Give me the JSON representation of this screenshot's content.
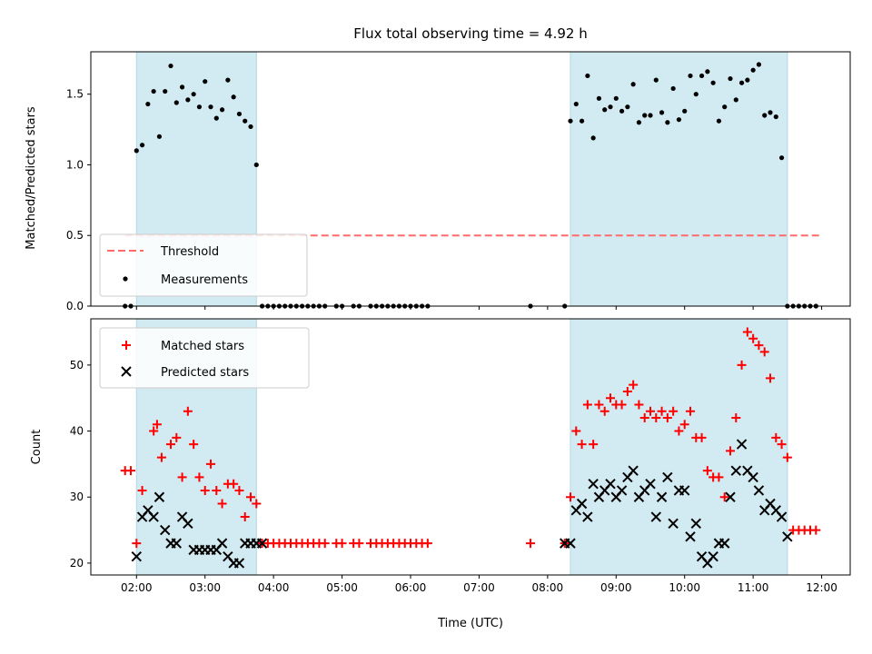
{
  "chart_data": [
    {
      "type": "scatter",
      "title": "Flux total observing time = 4.92 h",
      "xlabel": "",
      "ylabel": "Matched/Predicted stars",
      "xlim": [
        "01:20",
        "12:25"
      ],
      "ylim": [
        0,
        1.8
      ],
      "y_ticks": [
        "0.0",
        "0.5",
        "1.0",
        "1.5"
      ],
      "grid": false,
      "legend_position": "lower-left",
      "shaded_intervals": [
        [
          "02:00",
          "03:45"
        ],
        [
          "08:20",
          "11:30"
        ]
      ],
      "shaded_color": "#add8e6",
      "threshold": {
        "name": "Threshold",
        "value": 0.5,
        "x_range": [
          "01:50",
          "12:00"
        ],
        "color": "#ff6b6b",
        "style": "dashed"
      },
      "series": [
        {
          "name": "Measurements",
          "marker": "dot",
          "color": "#000000",
          "x": [
            "01:50",
            "01:55",
            "02:00",
            "02:05",
            "02:10",
            "02:15",
            "02:20",
            "02:25",
            "02:30",
            "02:35",
            "02:40",
            "02:45",
            "02:50",
            "02:55",
            "03:00",
            "03:05",
            "03:10",
            "03:15",
            "03:20",
            "03:25",
            "03:30",
            "03:35",
            "03:40",
            "03:45",
            "03:50",
            "03:55",
            "04:00",
            "04:05",
            "04:10",
            "04:15",
            "04:20",
            "04:25",
            "04:30",
            "04:35",
            "04:40",
            "04:45",
            "04:55",
            "05:00",
            "05:10",
            "05:15",
            "05:25",
            "05:30",
            "05:35",
            "05:40",
            "05:45",
            "05:50",
            "05:55",
            "06:00",
            "06:05",
            "06:10",
            "06:15",
            "07:45",
            "08:15",
            "08:20",
            "08:25",
            "08:30",
            "08:35",
            "08:40",
            "08:45",
            "08:50",
            "08:55",
            "09:00",
            "09:05",
            "09:10",
            "09:15",
            "09:20",
            "09:25",
            "09:30",
            "09:35",
            "09:40",
            "09:45",
            "09:50",
            "09:55",
            "10:00",
            "10:05",
            "10:10",
            "10:15",
            "10:20",
            "10:25",
            "10:30",
            "10:35",
            "10:40",
            "10:45",
            "10:50",
            "10:55",
            "11:00",
            "11:05",
            "11:10",
            "11:15",
            "11:20",
            "11:25",
            "11:30",
            "11:35",
            "11:40",
            "11:45",
            "11:50",
            "11:55"
          ],
          "y": [
            0,
            0,
            1.1,
            1.14,
            1.43,
            1.52,
            1.2,
            1.52,
            1.7,
            1.44,
            1.55,
            1.46,
            1.5,
            1.41,
            1.59,
            1.41,
            1.33,
            1.39,
            1.6,
            1.48,
            1.36,
            1.31,
            1.27,
            1.0,
            0,
            0,
            0,
            0,
            0,
            0,
            0,
            0,
            0,
            0,
            0,
            0,
            0,
            0,
            0,
            0,
            0,
            0,
            0,
            0,
            0,
            0,
            0,
            0,
            0,
            0,
            0,
            0,
            0,
            1.31,
            1.43,
            1.31,
            1.63,
            1.19,
            1.47,
            1.39,
            1.41,
            1.47,
            1.38,
            1.41,
            1.57,
            1.3,
            1.35,
            1.35,
            1.6,
            1.37,
            1.3,
            1.54,
            1.32,
            1.38,
            1.63,
            1.5,
            1.63,
            1.66,
            1.58,
            1.31,
            1.41,
            1.61,
            1.46,
            1.58,
            1.6,
            1.67,
            1.71,
            1.35,
            1.37,
            1.34,
            1.05,
            0,
            0,
            0,
            0,
            0,
            0
          ]
        }
      ]
    },
    {
      "type": "scatter",
      "title": "",
      "xlabel": "Time (UTC)",
      "ylabel": "Count",
      "xlim": [
        "01:20",
        "12:25"
      ],
      "ylim": [
        18.2,
        57
      ],
      "x_ticks": [
        "02:00",
        "03:00",
        "04:00",
        "05:00",
        "06:00",
        "07:00",
        "08:00",
        "09:00",
        "10:00",
        "11:00",
        "12:00"
      ],
      "y_ticks": [
        "20",
        "30",
        "40",
        "50"
      ],
      "grid": false,
      "legend_position": "upper-left",
      "shaded_intervals": [
        [
          "02:00",
          "03:45"
        ],
        [
          "08:20",
          "11:30"
        ]
      ],
      "shaded_color": "#add8e6",
      "series": [
        {
          "name": "Matched stars",
          "marker": "plus",
          "color": "#ff0000",
          "x": [
            "01:50",
            "01:55",
            "02:00",
            "02:05",
            "02:15",
            "02:18",
            "02:22",
            "02:30",
            "02:35",
            "02:40",
            "02:45",
            "02:50",
            "02:55",
            "03:00",
            "03:05",
            "03:10",
            "03:15",
            "03:20",
            "03:25",
            "03:30",
            "03:35",
            "03:40",
            "03:45",
            "03:50",
            "03:55",
            "04:00",
            "04:05",
            "04:10",
            "04:15",
            "04:20",
            "04:25",
            "04:30",
            "04:35",
            "04:40",
            "04:45",
            "04:55",
            "05:00",
            "05:10",
            "05:15",
            "05:25",
            "05:30",
            "05:35",
            "05:40",
            "05:45",
            "05:50",
            "05:55",
            "06:00",
            "06:05",
            "06:10",
            "06:15",
            "07:45",
            "08:15",
            "08:20",
            "08:25",
            "08:30",
            "08:35",
            "08:40",
            "08:45",
            "08:50",
            "08:55",
            "09:00",
            "09:05",
            "09:10",
            "09:15",
            "09:20",
            "09:25",
            "09:30",
            "09:35",
            "09:40",
            "09:45",
            "09:50",
            "09:55",
            "10:00",
            "10:05",
            "10:10",
            "10:15",
            "10:20",
            "10:25",
            "10:30",
            "10:35",
            "10:40",
            "10:45",
            "10:50",
            "10:55",
            "11:00",
            "11:05",
            "11:10",
            "11:15",
            "11:20",
            "11:25",
            "11:30",
            "11:35",
            "11:40",
            "11:45",
            "11:50",
            "11:55"
          ],
          "y": [
            34,
            34,
            23,
            31,
            40,
            41,
            36,
            38,
            39,
            33,
            43,
            38,
            33,
            31,
            35,
            31,
            29,
            32,
            32,
            31,
            27,
            30,
            29,
            23,
            23,
            23,
            23,
            23,
            23,
            23,
            23,
            23,
            23,
            23,
            23,
            23,
            23,
            23,
            23,
            23,
            23,
            23,
            23,
            23,
            23,
            23,
            23,
            23,
            23,
            23,
            23,
            23,
            30,
            40,
            38,
            44,
            38,
            44,
            43,
            45,
            44,
            44,
            46,
            47,
            44,
            42,
            43,
            42,
            43,
            42,
            43,
            40,
            41,
            43,
            39,
            39,
            34,
            33,
            33,
            30,
            37,
            42,
            50,
            55,
            54,
            53,
            52,
            48,
            39,
            38,
            36,
            25,
            25,
            25,
            25,
            25
          ]
        },
        {
          "name": "Predicted stars",
          "marker": "x",
          "color": "#000000",
          "x": [
            "02:00",
            "02:05",
            "02:10",
            "02:15",
            "02:20",
            "02:25",
            "02:30",
            "02:35",
            "02:40",
            "02:45",
            "02:50",
            "02:55",
            "03:00",
            "03:05",
            "03:10",
            "03:15",
            "03:20",
            "03:25",
            "03:30",
            "03:35",
            "03:40",
            "03:45",
            "03:50",
            "08:15",
            "08:20",
            "08:25",
            "08:30",
            "08:35",
            "08:40",
            "08:45",
            "08:50",
            "08:55",
            "09:00",
            "09:05",
            "09:10",
            "09:15",
            "09:20",
            "09:25",
            "09:30",
            "09:35",
            "09:40",
            "09:45",
            "09:50",
            "09:55",
            "10:00",
            "10:05",
            "10:10",
            "10:15",
            "10:20",
            "10:25",
            "10:30",
            "10:35",
            "10:40",
            "10:45",
            "10:50",
            "10:55",
            "11:00",
            "11:05",
            "11:10",
            "11:15",
            "11:20",
            "11:25",
            "11:30"
          ],
          "y": [
            21,
            27,
            28,
            27,
            30,
            25,
            23,
            23,
            27,
            26,
            22,
            22,
            22,
            22,
            22,
            23,
            21,
            20,
            20,
            23,
            23,
            23,
            23,
            23,
            23,
            28,
            29,
            27,
            32,
            30,
            31,
            32,
            30,
            31,
            33,
            34,
            30,
            31,
            32,
            27,
            30,
            33,
            26,
            31,
            31,
            24,
            26,
            21,
            20,
            21,
            23,
            23,
            30,
            34,
            38,
            34,
            33,
            31,
            28,
            29,
            28,
            27,
            24
          ]
        }
      ]
    }
  ]
}
